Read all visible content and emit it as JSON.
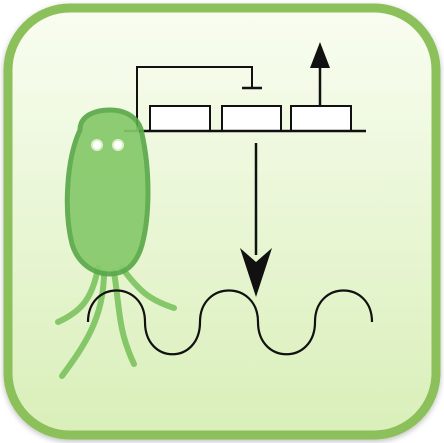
{
  "icon": {
    "name": "gene-regulation-bacterium",
    "colors": {
      "border": "#8cc05a",
      "background_top": "#f9fdf1",
      "background_bottom": "#d9efb9",
      "bacterium_fill": "#86c96a",
      "bacterium_stroke": "#5aa84a",
      "flagella": "#7cc35f",
      "eyes": "#ffffff",
      "diagram_lines": "#111111",
      "gene_box_fill": "#ffffff"
    },
    "diagram": {
      "gene_box_count": 3,
      "elements": [
        "repression-bar",
        "dna-line",
        "gene-box-1",
        "gene-box-2",
        "gene-box-3",
        "upward-arrow",
        "downward-arrow",
        "wave"
      ]
    }
  }
}
